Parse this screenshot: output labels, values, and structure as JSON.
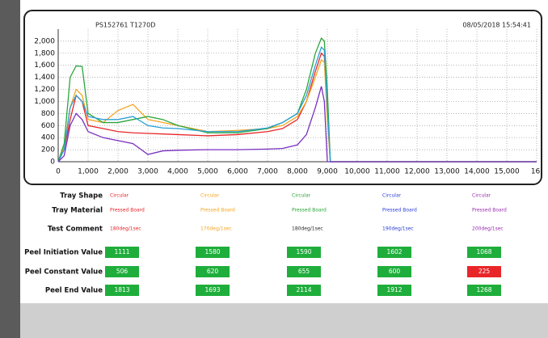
{
  "chart_data": {
    "type": "line",
    "header_left": "PS152761   T1270D",
    "header_right": "08/05/2018 15:54:41",
    "x": [
      0,
      200,
      400,
      600,
      800,
      1000,
      1500,
      2000,
      2500,
      3000,
      3500,
      4000,
      5000,
      6000,
      7000,
      7500,
      8000,
      8300,
      8600,
      8800,
      8900,
      9000,
      9100,
      16000
    ],
    "series": [
      {
        "name": "Red",
        "color": "#e8262a",
        "values": [
          0,
          200,
          700,
          1100,
          1000,
          600,
          550,
          500,
          480,
          470,
          460,
          450,
          430,
          450,
          500,
          550,
          700,
          1000,
          1500,
          1800,
          1750,
          800,
          0,
          0
        ]
      },
      {
        "name": "Orange",
        "color": "#f5a623",
        "values": [
          0,
          250,
          900,
          1200,
          1100,
          700,
          650,
          850,
          950,
          700,
          650,
          600,
          500,
          520,
          550,
          600,
          750,
          1000,
          1400,
          1690,
          1650,
          700,
          0,
          0
        ]
      },
      {
        "name": "Green",
        "color": "#2aa63a",
        "values": [
          0,
          300,
          1400,
          1590,
          1580,
          800,
          650,
          650,
          700,
          750,
          700,
          600,
          480,
          480,
          550,
          650,
          800,
          1200,
          1800,
          2050,
          2000,
          1200,
          0,
          0
        ]
      },
      {
        "name": "Blue",
        "color": "#2a9fd8",
        "values": [
          0,
          200,
          900,
          1100,
          1000,
          750,
          700,
          700,
          750,
          600,
          560,
          550,
          500,
          500,
          560,
          650,
          800,
          1100,
          1600,
          1900,
          1850,
          900,
          0,
          0
        ]
      },
      {
        "name": "Purple",
        "color": "#7a2fc0",
        "values": [
          0,
          100,
          600,
          800,
          700,
          500,
          400,
          350,
          300,
          120,
          180,
          190,
          200,
          200,
          210,
          220,
          280,
          450,
          900,
          1250,
          1000,
          0,
          0,
          0
        ]
      }
    ],
    "xlim": [
      0,
      16000
    ],
    "xticks": [
      0,
      {
        "value": 1000,
        "label": "1,000"
      },
      {
        "value": 2000,
        "label": "2,000"
      },
      {
        "value": 3000,
        "label": "3,000"
      },
      {
        "value": 4000,
        "label": "4,000"
      },
      {
        "value": 5000,
        "label": "5,000"
      },
      {
        "value": 6000,
        "label": "6,000"
      },
      {
        "value": 7000,
        "label": "7,000"
      },
      {
        "value": 8000,
        "label": "8,000"
      },
      {
        "value": 9000,
        "label": "9,000"
      },
      {
        "value": 10000,
        "label": "10,000"
      },
      {
        "value": 11000,
        "label": "11,000"
      },
      {
        "value": 12000,
        "label": "12,000"
      },
      {
        "value": 13000,
        "label": "13,000"
      },
      {
        "value": 14000,
        "label": "14,000"
      },
      {
        "value": 15000,
        "label": "15,000"
      },
      {
        "value": 16000,
        "label": "16,"
      }
    ],
    "ylim": [
      0,
      2200
    ],
    "yticks": [
      0,
      200,
      400,
      600,
      800,
      {
        "value": 1000,
        "label": "1,000"
      },
      {
        "value": 1200,
        "label": "1,200"
      },
      {
        "value": 1400,
        "label": "1,400"
      },
      {
        "value": 1600,
        "label": "1,600"
      },
      {
        "value": 1800,
        "label": "1,800"
      },
      {
        "value": 2000,
        "label": "2,000"
      }
    ],
    "grid": true
  },
  "table": {
    "text_rows": [
      {
        "label": "Tray Shape",
        "cells": [
          "Circular",
          "Circular",
          "Circular",
          "Circular",
          "Circular"
        ],
        "colors": [
          "#e8262a",
          "#f5a623",
          "#2aa63a",
          "#2a3fd8",
          "#9a2fb0"
        ]
      },
      {
        "label": "Tray Material",
        "cells": [
          "Pressed Board",
          "Pressed Board",
          "Pressed Board",
          "Pressed Board",
          "Pressed Board"
        ],
        "colors": [
          "#e8262a",
          "#f5a623",
          "#2aa63a",
          "#2a3fd8",
          "#9a2fb0"
        ]
      },
      {
        "label": "Test Comment",
        "cells": [
          "180deg/1sec",
          "170deg/1sec",
          "180deg/1sec",
          "190deg/1sec",
          "200deg/1sec"
        ],
        "colors": [
          "#e8262a",
          "#f5a623",
          "#2a2a2a",
          "#2a3fd8",
          "#9a2fb0"
        ]
      }
    ],
    "value_rows": [
      {
        "label": "Peel Initiation Value",
        "values": [
          1111,
          1580,
          1590,
          1602,
          1068
        ],
        "colors": [
          "#1fae3c",
          "#1fae3c",
          "#1fae3c",
          "#1fae3c",
          "#1fae3c"
        ]
      },
      {
        "label": "Peel Constant Value",
        "values": [
          506,
          620,
          655,
          600,
          225
        ],
        "colors": [
          "#1fae3c",
          "#1fae3c",
          "#1fae3c",
          "#1fae3c",
          "#e8262a"
        ]
      },
      {
        "label": "Peel End Value",
        "values": [
          1813,
          1693,
          2114,
          1912,
          1268
        ],
        "colors": [
          "#1fae3c",
          "#1fae3c",
          "#1fae3c",
          "#1fae3c",
          "#1fae3c"
        ]
      }
    ]
  }
}
